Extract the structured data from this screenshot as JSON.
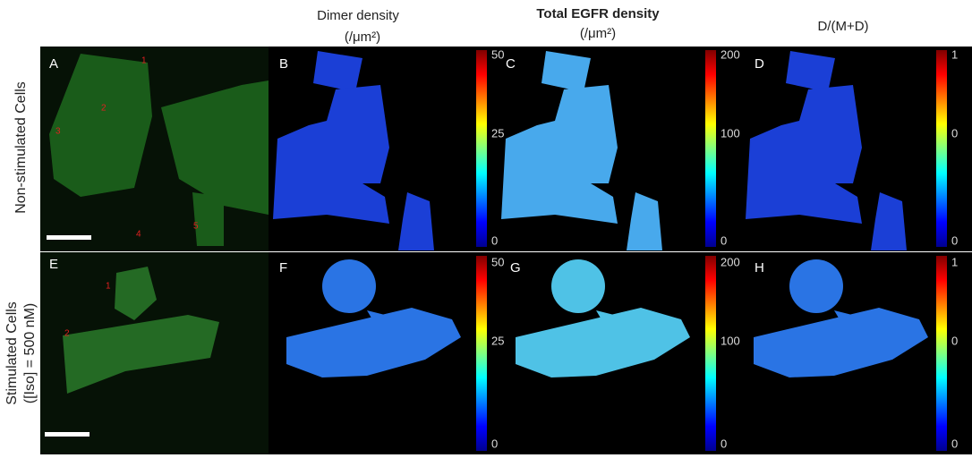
{
  "column_titles": [
    {
      "line1": "Dimer density",
      "line2": "(/μm²)"
    },
    {
      "line1": "Total EGFR density",
      "line2": "(/μm²)"
    },
    {
      "line1": "D/(M+D)"
    }
  ],
  "row_labels": [
    {
      "lines": [
        "Non-stimulated Cells"
      ]
    },
    {
      "lines": [
        "Stimulated Cells",
        "([Iso] = 500 nM)"
      ]
    }
  ],
  "panels": [
    {
      "letter": "A",
      "cell_numbers": [
        "1",
        "2",
        "3",
        "4",
        "5"
      ]
    },
    {
      "letter": "B"
    },
    {
      "letter": "C"
    },
    {
      "letter": "D"
    },
    {
      "letter": "E",
      "cell_numbers": [
        "1",
        "2"
      ]
    },
    {
      "letter": "F"
    },
    {
      "letter": "G"
    },
    {
      "letter": "H"
    }
  ],
  "colorbars": [
    {
      "ticks": [
        "50",
        "25",
        "0"
      ]
    },
    {
      "ticks": [
        "200",
        "100",
        "0"
      ]
    },
    {
      "ticks": [
        "1",
        "0",
        "0"
      ]
    },
    {
      "ticks": [
        "50",
        "25",
        "0"
      ]
    },
    {
      "ticks": [
        "200",
        "100",
        "0"
      ]
    },
    {
      "ticks": [
        "1",
        "0",
        "0"
      ]
    }
  ]
}
